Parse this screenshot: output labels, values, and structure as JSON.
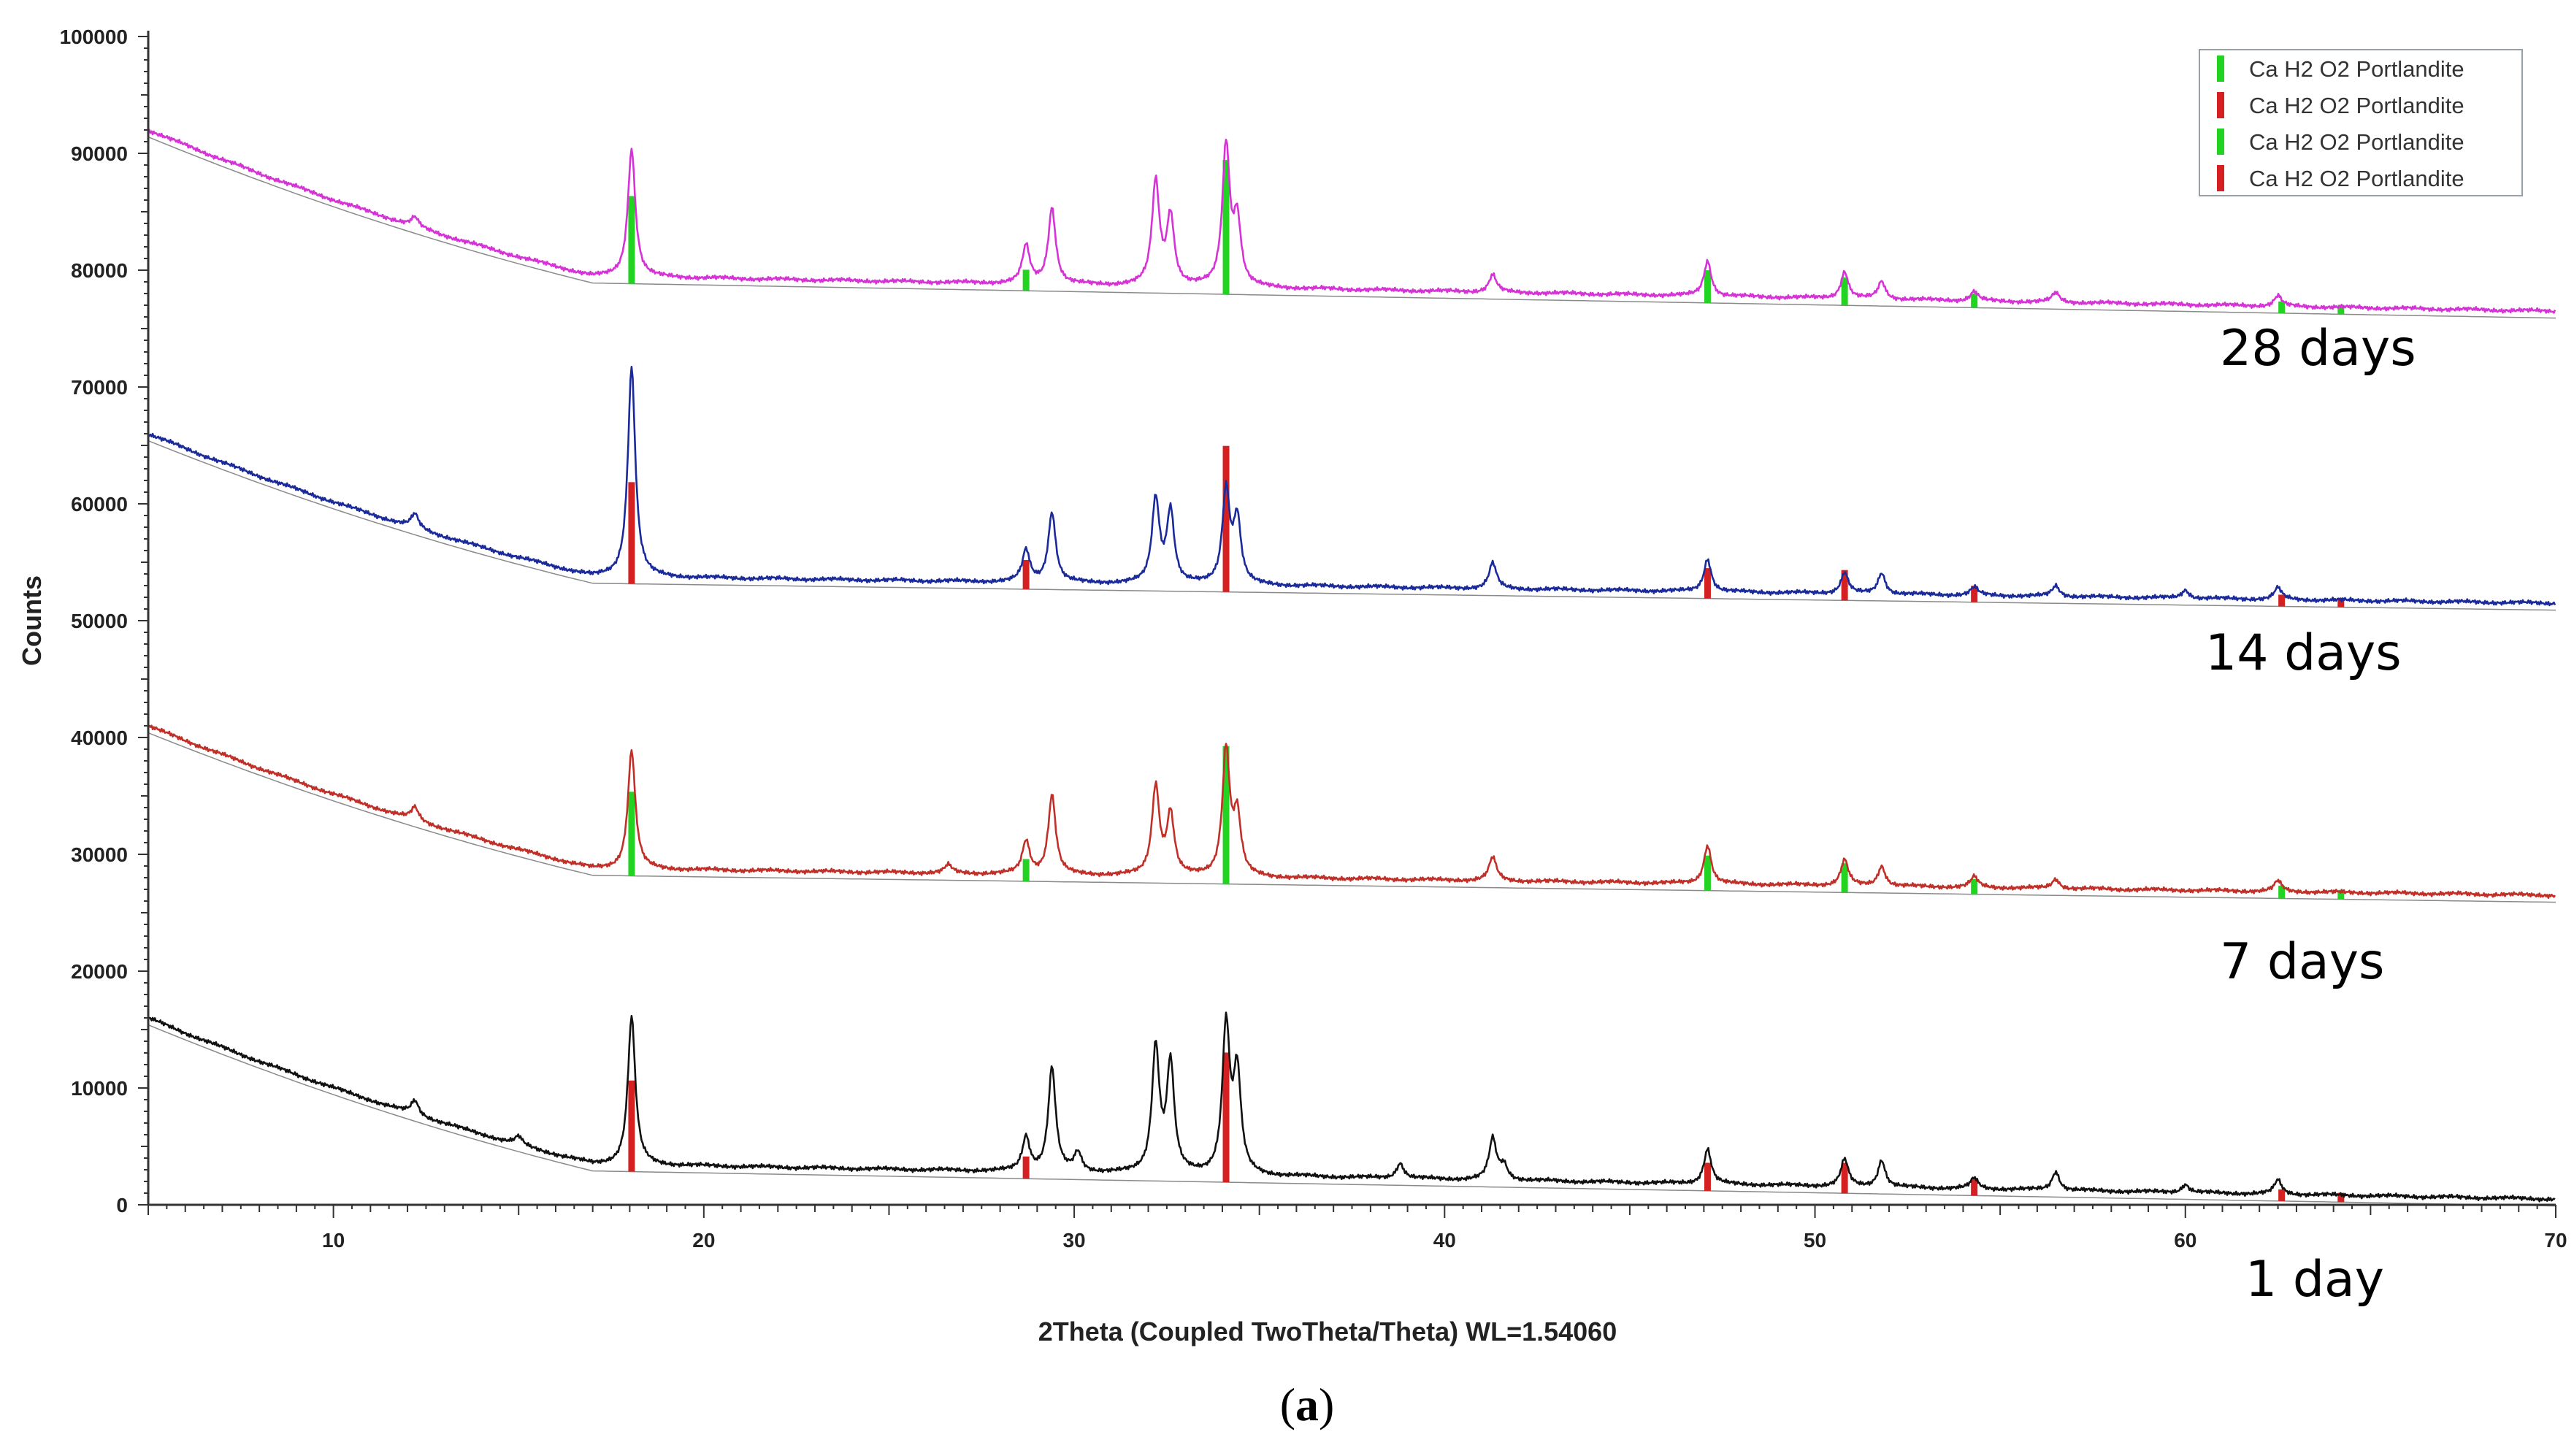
{
  "chart_data": {
    "type": "line",
    "xlabel": "2Theta (Coupled TwoTheta/Theta) WL=1.54060",
    "ylabel": "Counts",
    "xlim": [
      5,
      70
    ],
    "ylim": [
      0,
      100000
    ],
    "x_ticks": [
      10,
      20,
      30,
      40,
      50,
      60,
      70
    ],
    "y_ticks": [
      0,
      10000,
      20000,
      30000,
      40000,
      50000,
      60000,
      70000,
      80000,
      90000,
      100000
    ],
    "y_tick_labels": [
      "0",
      "10000",
      "20000",
      "30000",
      "40000",
      "50000",
      "60000",
      "70000",
      "80000",
      "90000",
      "100000"
    ],
    "grid": false,
    "legend_position": "top-right",
    "legend": [
      {
        "label": "Ca H2 O2 Portlandite",
        "color": "#22d322"
      },
      {
        "label": "Ca H2 O2 Portlandite",
        "color": "#d42020"
      },
      {
        "label": "Ca H2 O2 Portlandite",
        "color": "#22d322"
      },
      {
        "label": "Ca H2 O2 Portlandite",
        "color": "#d42020"
      }
    ],
    "series": [
      {
        "name": "28 days",
        "color": "#d633d6",
        "start": 92000,
        "knee_x": 17,
        "knee_y": 79500,
        "end": 76500,
        "peaks": [
          [
            12.2,
            800
          ],
          [
            18.05,
            11000
          ],
          [
            28.7,
            3200
          ],
          [
            29.4,
            6500
          ],
          [
            32.2,
            8800
          ],
          [
            32.6,
            5900
          ],
          [
            34.1,
            12000
          ],
          [
            34.4,
            5500
          ],
          [
            41.3,
            1500
          ],
          [
            47.1,
            3000
          ],
          [
            50.8,
            2300
          ],
          [
            51.8,
            1500
          ],
          [
            54.3,
            800
          ],
          [
            56.5,
            800
          ],
          [
            62.5,
            900
          ]
        ],
        "sticks_color": "#22d322",
        "sticks": [
          [
            18.05,
            7500
          ],
          [
            28.7,
            1800
          ],
          [
            34.1,
            11500
          ],
          [
            47.1,
            2800
          ],
          [
            50.8,
            2400
          ],
          [
            54.3,
            1200
          ],
          [
            62.6,
            1000
          ],
          [
            64.2,
            800
          ]
        ]
      },
      {
        "name": "14 days",
        "color": "#1a2a9a",
        "start": 66000,
        "knee_x": 17,
        "knee_y": 53800,
        "end": 51500,
        "peaks": [
          [
            12.2,
            1200
          ],
          [
            18.05,
            18000
          ],
          [
            28.7,
            2700
          ],
          [
            29.4,
            6000
          ],
          [
            32.2,
            7200
          ],
          [
            32.6,
            6200
          ],
          [
            34.1,
            8000
          ],
          [
            34.4,
            5500
          ],
          [
            41.3,
            2200
          ],
          [
            47.1,
            2800
          ],
          [
            50.8,
            1800
          ],
          [
            51.8,
            1800
          ],
          [
            54.3,
            700
          ],
          [
            56.5,
            900
          ],
          [
            60.0,
            700
          ],
          [
            62.5,
            1000
          ]
        ],
        "sticks_color": "#d42020",
        "sticks": [
          [
            18.05,
            8700
          ],
          [
            28.7,
            2500
          ],
          [
            34.1,
            12500
          ],
          [
            47.1,
            2600
          ],
          [
            50.8,
            2600
          ],
          [
            54.3,
            1400
          ],
          [
            62.6,
            1000
          ],
          [
            64.2,
            800
          ]
        ]
      },
      {
        "name": "7 days",
        "color": "#c03028",
        "start": 41000,
        "knee_x": 17,
        "knee_y": 28800,
        "end": 26500,
        "peaks": [
          [
            12.2,
            1100
          ],
          [
            18.05,
            10200
          ],
          [
            26.6,
            700
          ],
          [
            28.7,
            2800
          ],
          [
            29.4,
            6800
          ],
          [
            32.2,
            7600
          ],
          [
            32.6,
            5200
          ],
          [
            34.1,
            10800
          ],
          [
            34.4,
            5000
          ],
          [
            41.3,
            2000
          ],
          [
            47.1,
            3300
          ],
          [
            50.8,
            2200
          ],
          [
            51.8,
            1700
          ],
          [
            54.3,
            900
          ],
          [
            56.5,
            800
          ],
          [
            62.5,
            900
          ]
        ],
        "sticks_color": "#22d322",
        "sticks": [
          [
            18.05,
            7200
          ],
          [
            28.7,
            1900
          ],
          [
            34.1,
            11800
          ],
          [
            47.1,
            3000
          ],
          [
            50.8,
            2500
          ],
          [
            54.3,
            1300
          ],
          [
            62.6,
            1100
          ],
          [
            64.2,
            800
          ]
        ]
      },
      {
        "name": "1 day",
        "color": "#111111",
        "start": 16000,
        "knee_x": 17,
        "knee_y": 3500,
        "end": 500,
        "peaks": [
          [
            12.2,
            1200
          ],
          [
            15.0,
            700
          ],
          [
            18.05,
            12700
          ],
          [
            28.7,
            2900
          ],
          [
            29.4,
            8900
          ],
          [
            30.1,
            1600
          ],
          [
            32.2,
            10700
          ],
          [
            32.6,
            9300
          ],
          [
            34.1,
            12600
          ],
          [
            34.4,
            8500
          ],
          [
            38.8,
            1300
          ],
          [
            41.3,
            3500
          ],
          [
            41.6,
            1200
          ],
          [
            47.1,
            3000
          ],
          [
            50.8,
            2300
          ],
          [
            51.8,
            2300
          ],
          [
            54.3,
            900
          ],
          [
            56.5,
            1600
          ],
          [
            60.0,
            700
          ],
          [
            62.5,
            1200
          ]
        ],
        "sticks_color": "#d42020",
        "sticks": [
          [
            18.05,
            7800
          ],
          [
            28.7,
            1900
          ],
          [
            34.1,
            11100
          ],
          [
            47.1,
            2400
          ],
          [
            50.8,
            2600
          ],
          [
            54.3,
            1500
          ],
          [
            62.6,
            1000
          ],
          [
            64.2,
            800
          ]
        ]
      }
    ],
    "annotations": [
      "28 days",
      "14 days",
      "7 days",
      "1 day"
    ]
  },
  "panel_label": {
    "open": "(",
    "letter": "a",
    "close": ")"
  }
}
